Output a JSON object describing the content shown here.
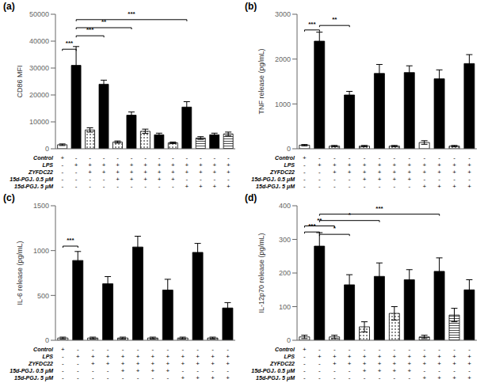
{
  "chart_data": [
    {
      "type": "bar",
      "title": "(a)",
      "y_label": "CD86 MFI",
      "grid": false,
      "categories": [
        null,
        null,
        null,
        null,
        null,
        null,
        null,
        null,
        null,
        null,
        null,
        null,
        null
      ],
      "values": [
        1500,
        31000,
        7000,
        24000,
        2500,
        12500,
        6500,
        5200,
        2200,
        15500,
        4000,
        5200,
        5500
      ],
      "errors": [
        300,
        7000,
        800,
        1500,
        400,
        1200,
        800,
        600,
        300,
        2000,
        500,
        600,
        700
      ],
      "colors": [
        "white",
        "black",
        "dotted",
        "black",
        "dotted",
        "black",
        "dotted",
        "black",
        "dotted",
        "black",
        "hlines",
        "black",
        "hlines"
      ],
      "ylim": [
        0,
        50000
      ],
      "yticks": [
        0,
        10000,
        20000,
        30000,
        40000,
        50000
      ],
      "annotations": [
        {
          "text": "***",
          "x1": 1,
          "x2": 3,
          "y": 42000
        },
        {
          "text": "**",
          "x1": 1,
          "x2": 5,
          "y": 45000
        },
        {
          "text": "***",
          "x1": 1,
          "x2": 9,
          "y": 48000
        },
        {
          "text": "***",
          "x1": 0,
          "x2": 1,
          "y": 37000
        }
      ],
      "table": {
        "row_labels": [
          "Control",
          "LPS",
          "ZYFDC22",
          "15d-PGJ₂ 0.5 μM",
          "15d-PGJ₂ 5 μM"
        ],
        "cells": [
          [
            "+",
            "-",
            "-",
            "-",
            "-",
            "-",
            "-",
            "-",
            "-",
            "-",
            "-",
            "-",
            "-"
          ],
          [
            "-",
            "+",
            "+",
            "+",
            "+",
            "+",
            "+",
            "+",
            "+",
            "+",
            "+",
            "+",
            "+"
          ],
          [
            "-",
            "-",
            "+",
            "+",
            "+",
            "+",
            "+",
            "+",
            "+",
            "+",
            "+",
            "+",
            "+"
          ],
          [
            "-",
            "-",
            "-",
            "-",
            "+",
            "+",
            "+",
            "+",
            "+",
            "-",
            "-",
            "-",
            "-"
          ],
          [
            "-",
            "-",
            "-",
            "-",
            "-",
            "-",
            "-",
            "-",
            "-",
            "+",
            "+",
            "+",
            "+"
          ]
        ]
      }
    },
    {
      "type": "bar",
      "title": "(b)",
      "y_label": "TNF release (pg/mL)",
      "grid": false,
      "categories": [
        null,
        null,
        null,
        null,
        null,
        null,
        null,
        null,
        null,
        null,
        null,
        null
      ],
      "values": [
        80,
        2400,
        60,
        1200,
        60,
        1680,
        60,
        1700,
        140,
        1560,
        60,
        1900
      ],
      "errors": [
        15,
        200,
        15,
        80,
        15,
        200,
        15,
        150,
        40,
        200,
        15,
        200
      ],
      "colors": [
        "white",
        "black",
        "dotted",
        "black",
        "dotted",
        "black",
        "dotted",
        "black",
        "white",
        "black",
        "dotted",
        "black"
      ],
      "ylim": [
        0,
        3000
      ],
      "yticks": [
        0,
        1000,
        2000,
        3000
      ],
      "annotations": [
        {
          "text": "***",
          "x1": 0,
          "x2": 1,
          "y": 2650
        },
        {
          "text": "**",
          "x1": 1,
          "x2": 3,
          "y": 2750
        }
      ],
      "table": {
        "row_labels": [
          "Control",
          "LPS",
          "ZYFDC22",
          "15d-PGJ₂ 0.5 μM",
          "15d-PGJ₂ 5 μM"
        ],
        "cells": [
          [
            "+",
            "-",
            "-",
            "-",
            "-",
            "-",
            "-",
            "-",
            "-",
            "-",
            "-",
            "-"
          ],
          [
            "-",
            "+",
            "+",
            "+",
            "+",
            "+",
            "+",
            "+",
            "+",
            "+",
            "+",
            "+"
          ],
          [
            "-",
            "-",
            "+",
            "+",
            "+",
            "+",
            "+",
            "+",
            "+",
            "+",
            "+",
            "+"
          ],
          [
            "-",
            "-",
            "-",
            "-",
            "+",
            "+",
            "+",
            "+",
            "-",
            "-",
            "-",
            "-"
          ],
          [
            "-",
            "-",
            "-",
            "-",
            "-",
            "-",
            "-",
            "-",
            "+",
            "+",
            "+",
            "+"
          ]
        ]
      }
    },
    {
      "type": "bar",
      "title": "(c)",
      "y_label": "IL-6 release (pg/mL)",
      "grid": false,
      "categories": [
        null,
        null,
        null,
        null,
        null,
        null,
        null,
        null,
        null,
        null,
        null,
        null
      ],
      "values": [
        25,
        890,
        25,
        630,
        25,
        1040,
        25,
        560,
        25,
        980,
        25,
        360
      ],
      "errors": [
        10,
        100,
        10,
        80,
        10,
        120,
        10,
        120,
        10,
        100,
        10,
        60
      ],
      "colors": [
        "white",
        "black",
        "dotted",
        "black",
        "dotted",
        "black",
        "dotted",
        "black",
        "dotted",
        "black",
        "dotted",
        "black"
      ],
      "ylim": [
        0,
        1500
      ],
      "yticks": [
        0,
        500,
        1000,
        1500
      ],
      "annotations": [
        {
          "text": "***",
          "x1": 0,
          "x2": 1,
          "y": 1050
        }
      ],
      "table": {
        "row_labels": [
          "Control",
          "LPS",
          "ZYFDC22",
          "15d-PGJ₂ 0.5 μM",
          "15d-PGJ₂ 5 μM"
        ],
        "cells": [
          [
            "+",
            "-",
            "-",
            "-",
            "-",
            "-",
            "-",
            "-",
            "-",
            "-",
            "-",
            "-"
          ],
          [
            "-",
            "+",
            "+",
            "+",
            "+",
            "+",
            "+",
            "+",
            "+",
            "+",
            "+",
            "+"
          ],
          [
            "-",
            "-",
            "+",
            "+",
            "+",
            "+",
            "+",
            "+",
            "+",
            "+",
            "+",
            "+"
          ],
          [
            "-",
            "-",
            "-",
            "-",
            "+",
            "+",
            "+",
            "+",
            "-",
            "-",
            "-",
            "-"
          ],
          [
            "-",
            "-",
            "-",
            "-",
            "-",
            "-",
            "-",
            "-",
            "+",
            "+",
            "+",
            "+"
          ]
        ]
      }
    },
    {
      "type": "bar",
      "title": "(d)",
      "y_label": "IL-12p70 release (pg/mL)",
      "grid": false,
      "categories": [
        null,
        null,
        null,
        null,
        null,
        null,
        null,
        null,
        null,
        null,
        null,
        null
      ],
      "values": [
        10,
        280,
        10,
        165,
        40,
        190,
        80,
        180,
        10,
        205,
        75,
        150
      ],
      "errors": [
        5,
        40,
        5,
        30,
        15,
        40,
        20,
        30,
        5,
        40,
        20,
        30
      ],
      "colors": [
        "white",
        "black",
        "dotted",
        "black",
        "dotted",
        "black",
        "dotted",
        "black",
        "hlines",
        "black",
        "hlines",
        "black"
      ],
      "ylim": [
        0,
        400
      ],
      "yticks": [
        0,
        100,
        200,
        300,
        400
      ],
      "annotations": [
        {
          "text": "***",
          "x1": 0,
          "x2": 1,
          "y": 322
        },
        {
          "text": "**",
          "x1": 0,
          "x2": 2,
          "y": 340
        },
        {
          "text": "*",
          "x1": 1,
          "x2": 3,
          "y": 315
        },
        {
          "text": "*",
          "x1": 1,
          "x2": 5,
          "y": 356
        },
        {
          "text": "***",
          "x1": 1,
          "x2": 9,
          "y": 375
        }
      ],
      "table": {
        "row_labels": [
          "Control",
          "LPS",
          "ZYFDC22",
          "15d-PGJ₂ 0.5 μM",
          "15d-PGJ₂ 5 μM"
        ],
        "cells": [
          [
            "+",
            "-",
            "-",
            "-",
            "-",
            "-",
            "-",
            "-",
            "-",
            "-",
            "-",
            "-"
          ],
          [
            "-",
            "+",
            "+",
            "+",
            "+",
            "+",
            "+",
            "+",
            "+",
            "+",
            "+",
            "+"
          ],
          [
            "-",
            "-",
            "+",
            "+",
            "+",
            "+",
            "+",
            "+",
            "+",
            "+",
            "+",
            "+"
          ],
          [
            "-",
            "-",
            "-",
            "-",
            "+",
            "+",
            "+",
            "+",
            "-",
            "-",
            "-",
            "-"
          ],
          [
            "-",
            "-",
            "-",
            "-",
            "-",
            "-",
            "-",
            "-",
            "+",
            "+",
            "+",
            "+"
          ]
        ]
      }
    }
  ]
}
